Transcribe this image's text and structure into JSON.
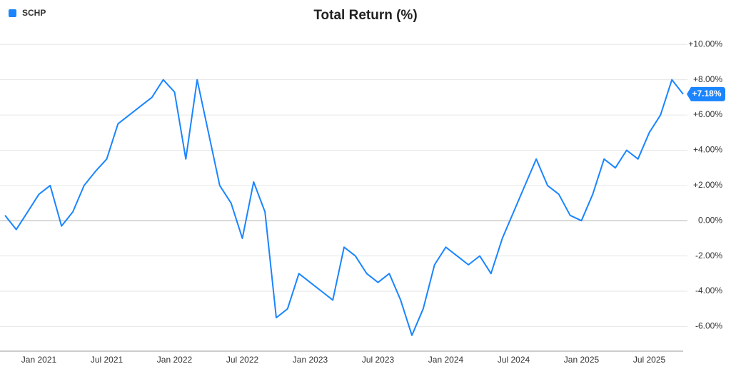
{
  "chart_data": {
    "type": "line",
    "title": "Total Return (%)",
    "categories": [
      null,
      null,
      null,
      "Jan 2021",
      null,
      null,
      null,
      null,
      null,
      "Jul 2021",
      null,
      null,
      null,
      null,
      null,
      "Jan 2022",
      null,
      null,
      null,
      null,
      null,
      "Jul 2022",
      null,
      null,
      null,
      null,
      null,
      "Jan 2023",
      null,
      null,
      null,
      null,
      null,
      "Jul 2023",
      null,
      null,
      null,
      null,
      null,
      "Jan 2024",
      null,
      null,
      null,
      null,
      null,
      "Jul 2024",
      null,
      null,
      null,
      null,
      null,
      "Jan 2025",
      null,
      null,
      null,
      null,
      null,
      "Jul 2025",
      null,
      null,
      null
    ],
    "series": [
      {
        "name": "SCHP",
        "color": "#1a85ff",
        "values": [
          0.3,
          -0.5,
          0.5,
          1.5,
          2.0,
          -0.3,
          0.5,
          2.0,
          2.8,
          3.5,
          5.5,
          6.0,
          6.5,
          7.0,
          8.0,
          7.3,
          3.5,
          8.0,
          5.0,
          2.0,
          1.0,
          -1.0,
          2.2,
          0.5,
          -5.5,
          -5.0,
          -3.0,
          -3.5,
          -4.0,
          -4.5,
          -1.5,
          -2.0,
          -3.0,
          -3.5,
          -3.0,
          -4.5,
          -6.5,
          -5.0,
          -2.5,
          -1.5,
          -2.0,
          -2.5,
          -2.0,
          -3.0,
          -1.0,
          0.5,
          2.0,
          3.5,
          2.0,
          1.5,
          0.3,
          0.0,
          1.5,
          3.5,
          3.0,
          4.0,
          3.5,
          5.0,
          6.0,
          8.0,
          7.18
        ],
        "value_labels": [
          null,
          null,
          null,
          null,
          null,
          null,
          null,
          null,
          null,
          null,
          null,
          null,
          null,
          null,
          null,
          null,
          null,
          null,
          null,
          null,
          null,
          null,
          null,
          null,
          null,
          null,
          null,
          null,
          null,
          null,
          null,
          null,
          null,
          null,
          null,
          null,
          null,
          null,
          null,
          null,
          null,
          null,
          null,
          null,
          null,
          null,
          null,
          null,
          null,
          null,
          null,
          null,
          null,
          null,
          null,
          null,
          null,
          null,
          null,
          null,
          "+7.18%"
        ]
      }
    ],
    "ylim": [
      -7.4,
      10.7
    ],
    "yticks": [
      {
        "value": -6,
        "label": "-6.00%"
      },
      {
        "value": -4,
        "label": "-4.00%"
      },
      {
        "value": -2,
        "label": "-2.00%"
      },
      {
        "value": 0,
        "label": "0.00%"
      },
      {
        "value": 2,
        "label": "+2.00%"
      },
      {
        "value": 4,
        "label": "+4.00%"
      },
      {
        "value": 6,
        "label": "+6.00%"
      },
      {
        "value": 8,
        "label": "+8.00%"
      },
      {
        "value": 10,
        "label": "+10.00%"
      }
    ],
    "grid": true,
    "legend": "top-left"
  }
}
